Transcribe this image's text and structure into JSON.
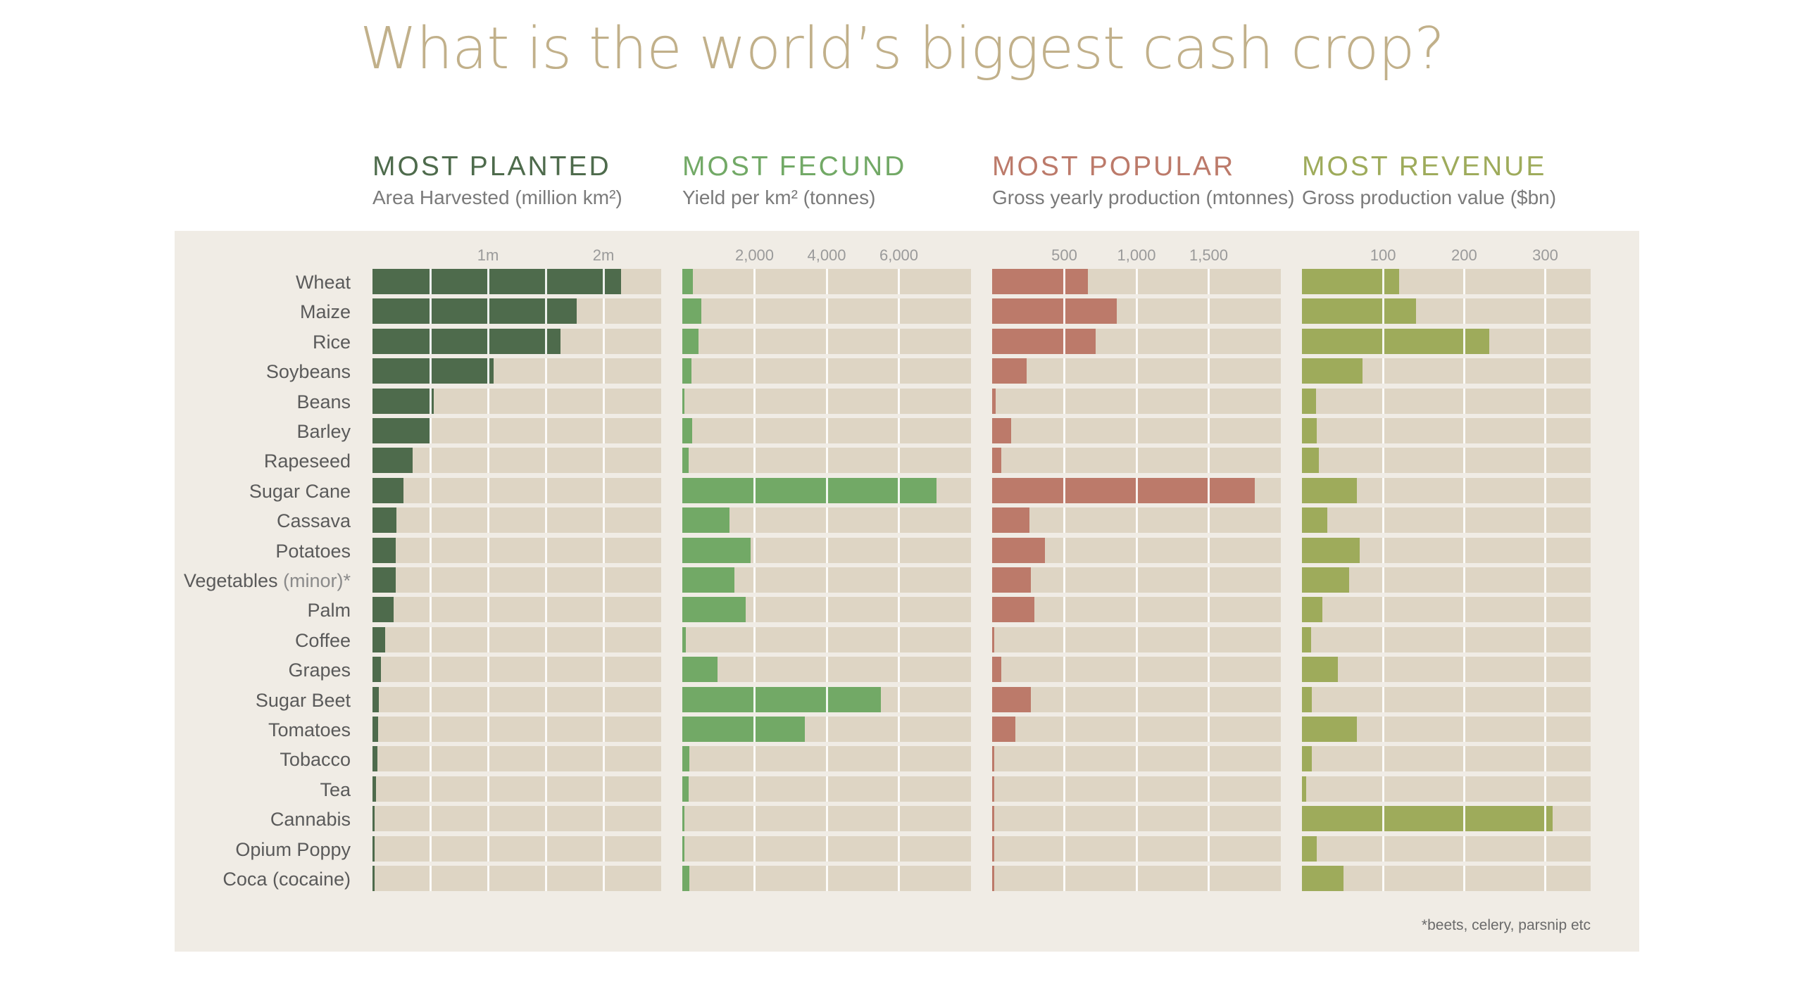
{
  "title": "What is the world’s biggest cash crop?",
  "footnote": "*beets, celery, parsnip etc",
  "colors": {
    "track": "#ded5c4",
    "panel": "#f0ece5",
    "title": "#c1b08a",
    "planted": "#4e6b4c",
    "fecund": "#72a966",
    "popular": "#bc7a6a",
    "revenue": "#9eab5b"
  },
  "chart_data": {
    "type": "bar",
    "orientation": "horizontal",
    "categories": [
      "Wheat",
      "Maize",
      "Rice",
      "Soybeans",
      "Beans",
      "Barley",
      "Rapeseed",
      "Sugar Cane",
      "Cassava",
      "Potatoes",
      "Vegetables (minor)*",
      "Palm",
      "Coffee",
      "Grapes",
      "Sugar Beet",
      "Tomatoes",
      "Tobacco",
      "Tea",
      "Cannabis",
      "Opium Poppy",
      "Coca (cocaine)"
    ],
    "panels": [
      {
        "key": "planted",
        "title": "MOST PLANTED",
        "subtitle": "Area Harvested (million km²)",
        "color": "#4e6b4c",
        "xlim": [
          0,
          2.5
        ],
        "gridlines": [
          0.5,
          1.0,
          1.5,
          2.0
        ],
        "ticks": [
          {
            "value": 1.0,
            "label": "1m"
          },
          {
            "value": 2.0,
            "label": "2m"
          }
        ],
        "values": [
          2.15,
          1.77,
          1.63,
          1.05,
          0.53,
          0.5,
          0.35,
          0.27,
          0.21,
          0.2,
          0.2,
          0.18,
          0.11,
          0.075,
          0.055,
          0.05,
          0.04,
          0.03,
          0.01,
          0.003,
          0.003
        ]
      },
      {
        "key": "fecund",
        "title": "MOST FECUND",
        "subtitle": "Yield per km² (tonnes)",
        "color": "#72a966",
        "xlim": [
          0,
          8000
        ],
        "gridlines": [
          2000,
          4000,
          6000
        ],
        "ticks": [
          {
            "value": 2000,
            "label": "2,000"
          },
          {
            "value": 4000,
            "label": "4,000"
          },
          {
            "value": 6000,
            "label": "6,000"
          }
        ],
        "values": [
          300,
          520,
          440,
          250,
          60,
          280,
          180,
          7050,
          1300,
          1900,
          1450,
          1750,
          90,
          980,
          5500,
          3400,
          200,
          170,
          30,
          40,
          200
        ]
      },
      {
        "key": "popular",
        "title": "MOST POPULAR",
        "subtitle": "Gross yearly production (mtonnes)",
        "color": "#bc7a6a",
        "xlim": [
          0,
          2000
        ],
        "gridlines": [
          500,
          1000,
          1500
        ],
        "ticks": [
          {
            "value": 500,
            "label": "500"
          },
          {
            "value": 1000,
            "label": "1,000"
          },
          {
            "value": 1500,
            "label": "1,500"
          }
        ],
        "values": [
          665,
          865,
          715,
          240,
          25,
          130,
          65,
          1820,
          260,
          365,
          270,
          295,
          10,
          65,
          270,
          160,
          8,
          5,
          1,
          1,
          1
        ]
      },
      {
        "key": "revenue",
        "title": "MOST REVENUE",
        "subtitle": "Gross production value ($bn)",
        "color": "#9eab5b",
        "xlim": [
          0,
          356
        ],
        "gridlines": [
          100,
          200,
          300
        ],
        "ticks": [
          {
            "value": 100,
            "label": "100"
          },
          {
            "value": 200,
            "label": "200"
          },
          {
            "value": 300,
            "label": "300"
          }
        ],
        "values": [
          120,
          141,
          231,
          75,
          17,
          18,
          21,
          68,
          31,
          71,
          58,
          25,
          11,
          44,
          12,
          68,
          12,
          5,
          309,
          18,
          51
        ]
      }
    ]
  }
}
